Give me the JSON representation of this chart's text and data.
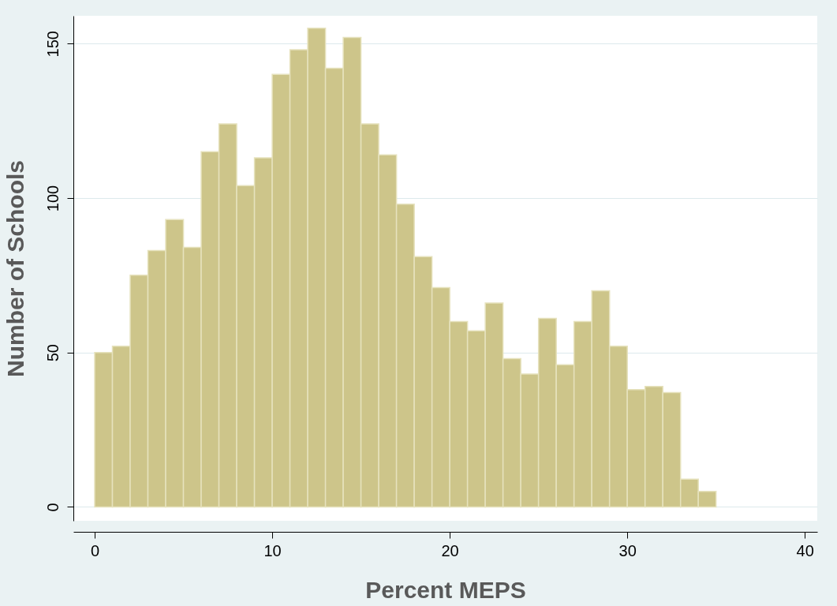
{
  "chart_data": {
    "type": "histogram",
    "xlabel": "Percent MEPS",
    "ylabel": "Number of Schools",
    "bins": [
      0,
      1,
      2,
      3,
      4,
      5,
      6,
      7,
      8,
      9,
      10,
      11,
      12,
      13,
      14,
      15,
      16,
      17,
      18,
      19,
      20,
      21,
      22,
      23,
      24,
      25,
      26,
      27,
      28,
      29,
      30,
      31,
      32,
      33,
      34,
      35
    ],
    "values": [
      50,
      52,
      75,
      83,
      93,
      84,
      115,
      124,
      104,
      113,
      140,
      148,
      155,
      142,
      152,
      124,
      114,
      98,
      81,
      71,
      60,
      57,
      66,
      48,
      43,
      61,
      46,
      60,
      70,
      52,
      38,
      39,
      37,
      9,
      5
    ],
    "color": "#cdc58a",
    "xlim": [
      -1.2,
      40.7
    ],
    "ylim": [
      -4.5,
      159
    ],
    "xticks": [
      0,
      10,
      20,
      30,
      40
    ],
    "yticks": [
      0,
      50,
      100,
      150
    ],
    "grid": "y"
  }
}
